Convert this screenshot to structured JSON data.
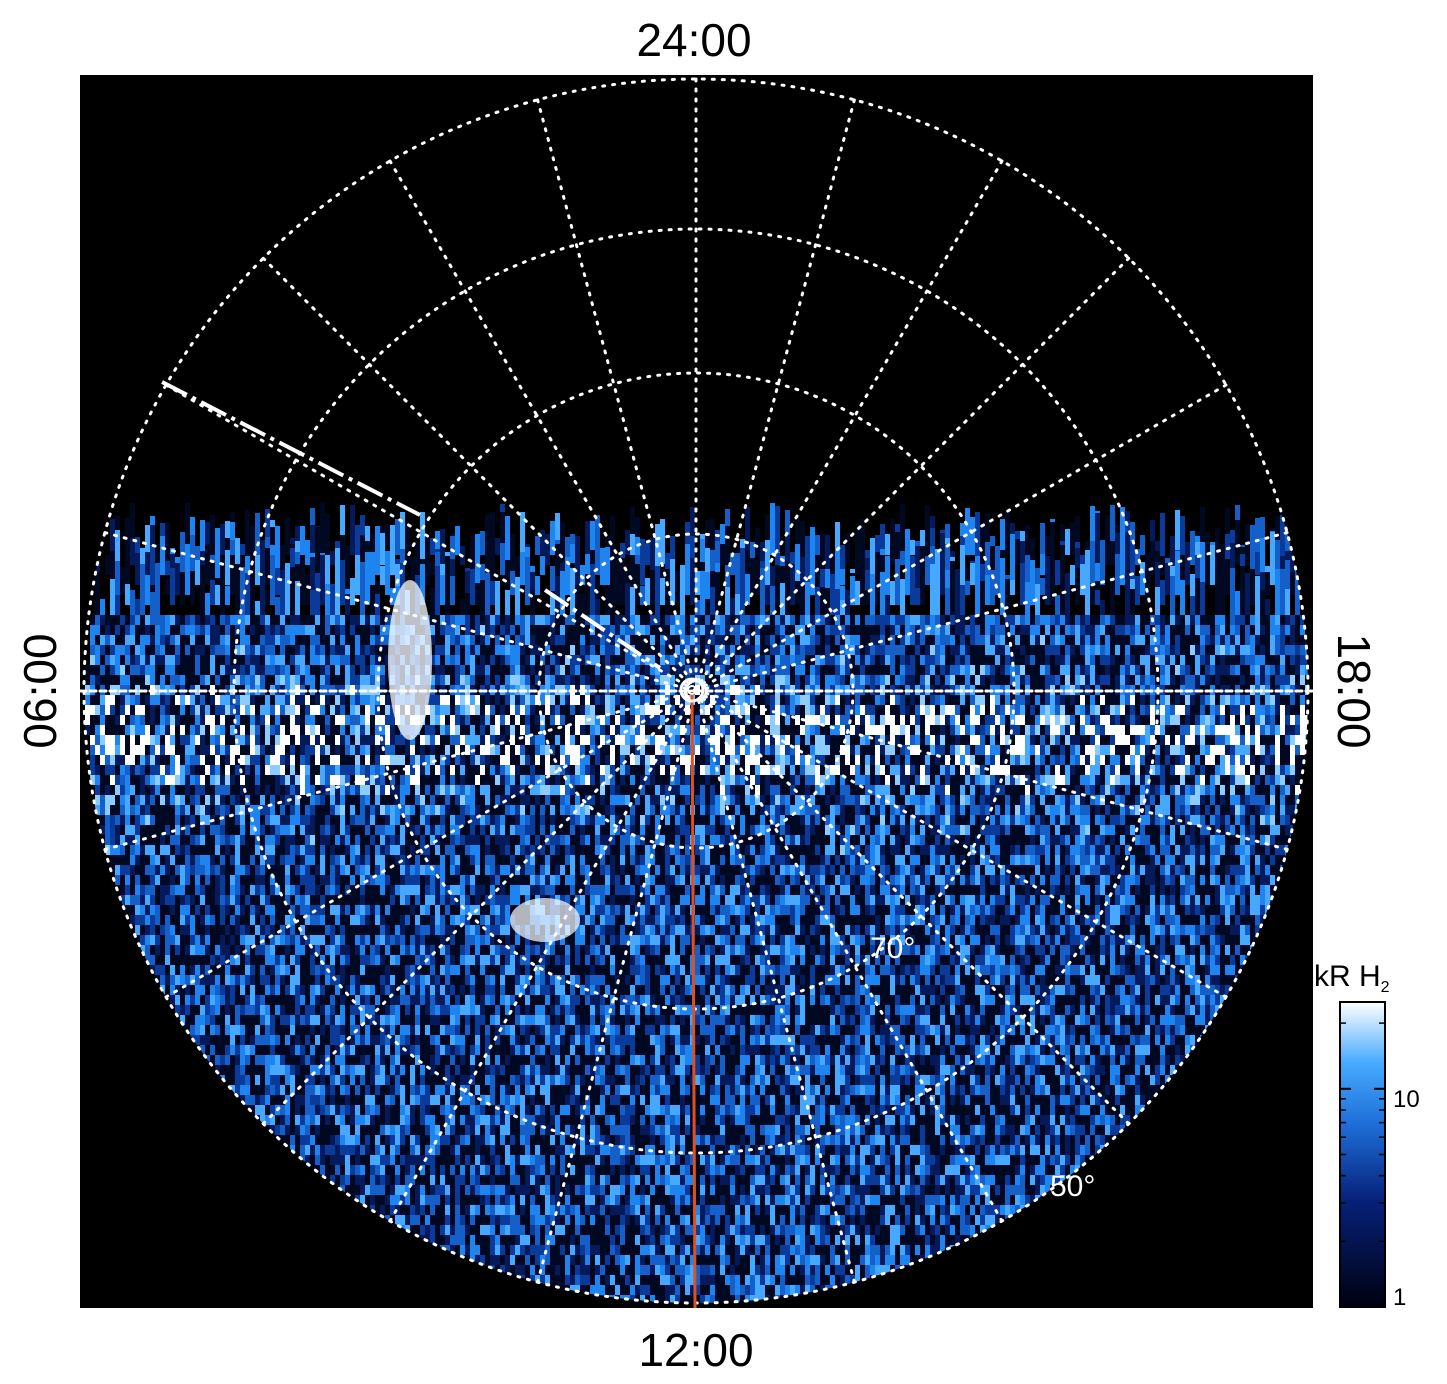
{
  "plot": {
    "local_time_labels": {
      "top": "24:00",
      "bottom": "12:00",
      "left": "06:00",
      "right": "18:00"
    },
    "latitude_labels": [
      {
        "text": "70°",
        "latitude": 70
      },
      {
        "text": "50°",
        "latitude": 50
      }
    ],
    "colors": {
      "background": "#000000",
      "grid": "#ffffff",
      "meridian": "#e0501e",
      "emission_low": "#000010",
      "emission_mid": "#1e8cff",
      "emission_high": "#ffffff"
    }
  },
  "colorbar": {
    "title": "kR H",
    "title_subscript": "2",
    "scale": "log",
    "range": [
      1,
      25
    ],
    "ticks": [
      {
        "label": "10",
        "value": 10
      },
      {
        "label": "1",
        "value": 1
      }
    ]
  }
}
